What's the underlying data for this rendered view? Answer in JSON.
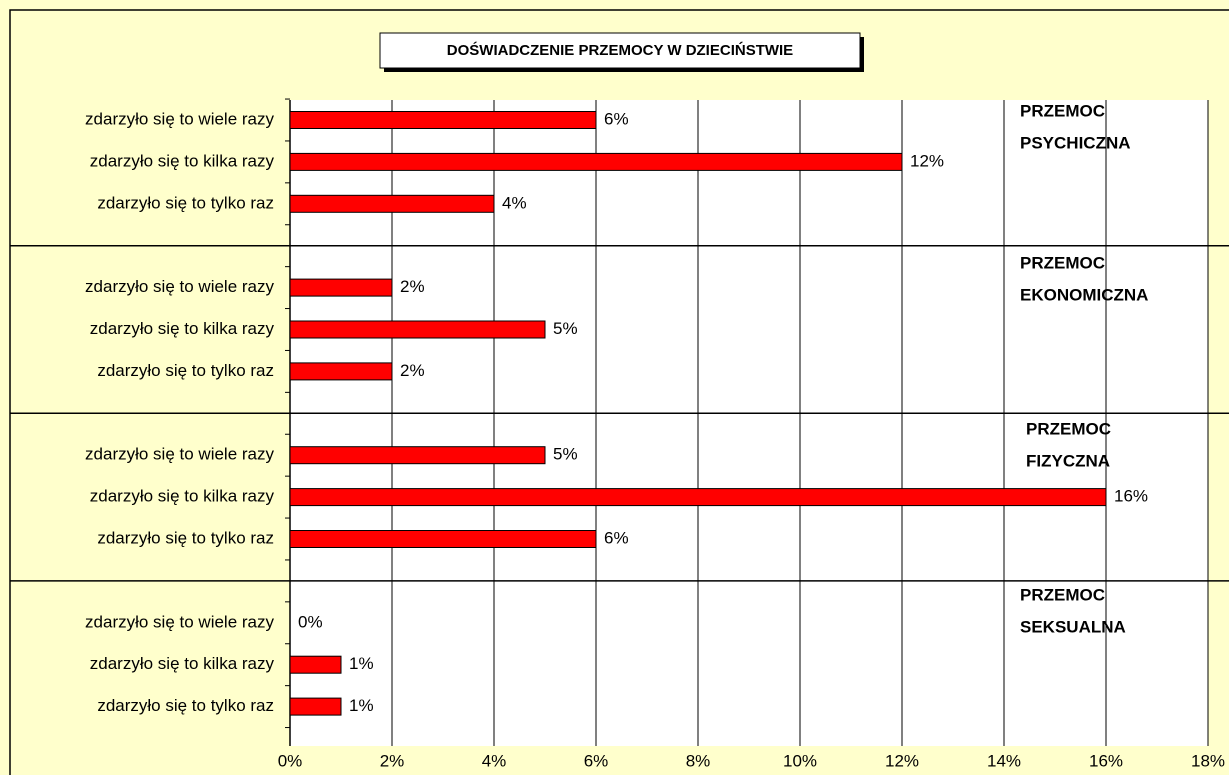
{
  "chart_data": {
    "type": "bar",
    "orientation": "horizontal",
    "title": "DOŚWIADCZENIE PRZEMOCY W DZIECIŃSTWIE",
    "groups": [
      [
        "PRZEMOC",
        "PSYCHICZNA"
      ],
      [
        "PRZEMOC",
        "EKONOMICZNA"
      ],
      [
        "PRZEMOC",
        "FIZYCZNA"
      ],
      [
        "PRZEMOC",
        "SEKSUALNA"
      ]
    ],
    "categories": [
      "zdarzyło się to wiele razy",
      "zdarzyło się to kilka razy",
      "zdarzyło się to tylko raz",
      "zdarzyło się to wiele razy",
      "zdarzyło się to kilka razy",
      "zdarzyło się to tylko raz",
      "zdarzyło się to wiele razy",
      "zdarzyło się to kilka razy",
      "zdarzyło się to tylko raz",
      "zdarzyło się to wiele razy",
      "zdarzyło się to kilka razy",
      "zdarzyło się to tylko raz"
    ],
    "values": [
      6,
      12,
      4,
      2,
      5,
      2,
      5,
      16,
      6,
      0,
      1,
      1
    ],
    "value_labels": [
      "6%",
      "12%",
      "4%",
      "2%",
      "5%",
      "2%",
      "5%",
      "16%",
      "6%",
      "0%",
      "1%",
      "1%"
    ],
    "color": "#ff0000",
    "xlim": [
      0,
      18
    ],
    "xticks": [
      {
        "value": 0,
        "label": "0%"
      },
      {
        "value": 2,
        "label": "2%"
      },
      {
        "value": 4,
        "label": "4%"
      },
      {
        "value": 6,
        "label": "6%"
      },
      {
        "value": 8,
        "label": "8%"
      },
      {
        "value": 10,
        "label": "10%"
      },
      {
        "value": 12,
        "label": "12%"
      },
      {
        "value": 14,
        "label": "14%"
      },
      {
        "value": 16,
        "label": "16%"
      },
      {
        "value": 18,
        "label": "18%"
      }
    ],
    "grid": true
  }
}
